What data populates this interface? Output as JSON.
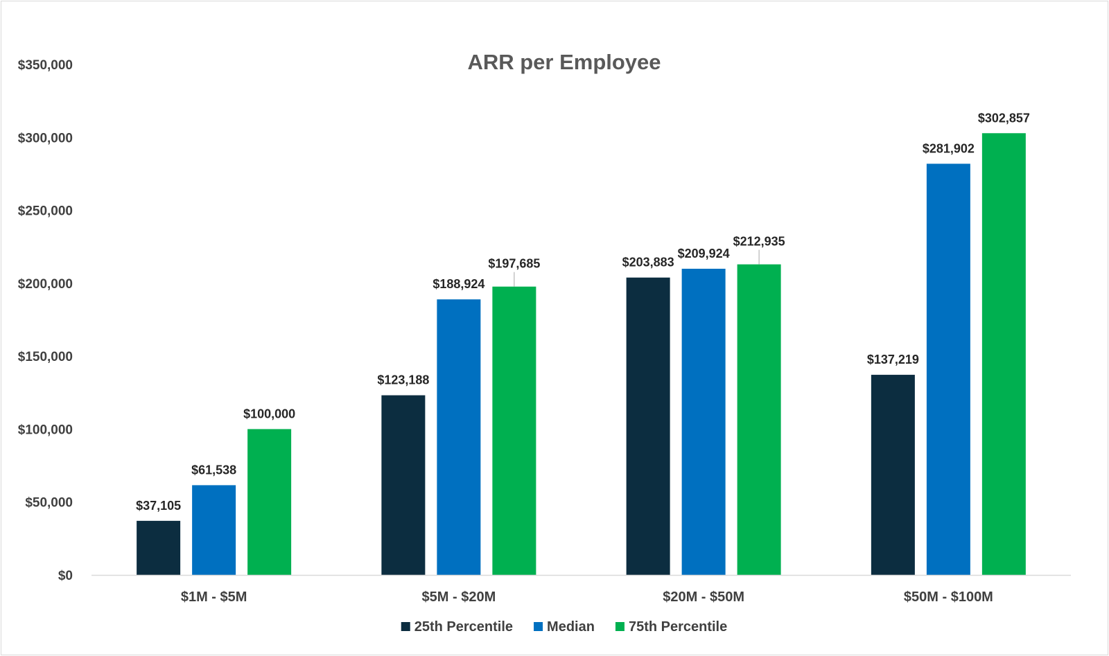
{
  "chart_data": {
    "type": "bar",
    "title": "ARR per Employee",
    "xlabel": "",
    "ylabel": "",
    "categories": [
      "$1M - $5M",
      "$5M - $20M",
      "$20M - $50M",
      "$50M - $100M"
    ],
    "series": [
      {
        "name": "25th Percentile",
        "color": "#0c2d40",
        "values": [
          37105,
          123188,
          203883,
          137219
        ],
        "labels": [
          "$37,105",
          "$123,188",
          "$203,883",
          "$137,219"
        ]
      },
      {
        "name": "Median",
        "color": "#0070c0",
        "values": [
          61538,
          188924,
          209924,
          281902
        ],
        "labels": [
          "$61,538",
          "$188,924",
          "$209,924",
          "$281,902"
        ]
      },
      {
        "name": "75th Percentile",
        "color": "#00b050",
        "values": [
          100000,
          197685,
          212935,
          302857
        ],
        "labels": [
          "$100,000",
          "$197,685",
          "$212,935",
          "$302,857"
        ]
      }
    ],
    "ylim": [
      0,
      350000
    ],
    "yticks": [
      0,
      50000,
      100000,
      150000,
      200000,
      250000,
      300000,
      350000
    ],
    "ytick_labels": [
      "$0",
      "$50,000",
      "$100,000",
      "$150,000",
      "$200,000",
      "$250,000",
      "$300,000",
      "$350,000"
    ],
    "grid": false,
    "legend": "bottom"
  }
}
